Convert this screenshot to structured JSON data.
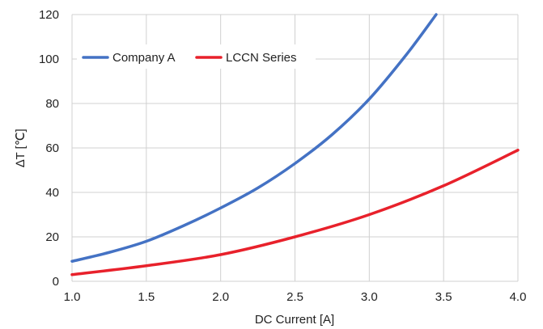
{
  "chart_data": {
    "type": "line",
    "title": "",
    "xlabel": "DC Current [A]",
    "ylabel": "∆T [℃]",
    "xlim": [
      1.0,
      4.0
    ],
    "ylim": [
      0,
      120
    ],
    "xticks": [
      1.0,
      1.5,
      2.0,
      2.5,
      3.0,
      3.5,
      4.0
    ],
    "yticks": [
      0,
      20,
      40,
      60,
      80,
      100,
      120
    ],
    "xtick_labels": [
      "1.0",
      "1.5",
      "2.0",
      "2.5",
      "3.0",
      "3.5",
      "4.0"
    ],
    "ytick_labels": [
      "0",
      "20",
      "40",
      "60",
      "80",
      "100",
      "120"
    ],
    "grid": true,
    "legend_position": "top-left",
    "series": [
      {
        "name": "Company A",
        "color": "#4472c4",
        "x": [
          1.0,
          1.25,
          1.5,
          1.75,
          2.0,
          2.25,
          2.5,
          2.75,
          3.0,
          3.25,
          3.45
        ],
        "y": [
          9,
          13,
          18,
          25,
          33,
          42,
          53,
          66,
          82,
          102,
          120
        ]
      },
      {
        "name": "LCCN Series",
        "color": "#e8212b",
        "x": [
          1.0,
          1.5,
          2.0,
          2.5,
          3.0,
          3.5,
          4.0
        ],
        "y": [
          3,
          7,
          12,
          20,
          30,
          43,
          59
        ]
      }
    ]
  }
}
